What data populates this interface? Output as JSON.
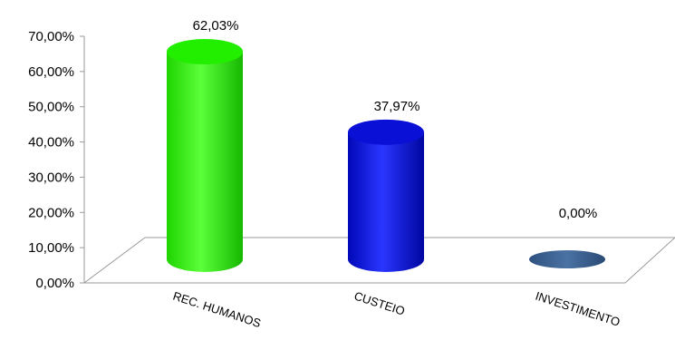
{
  "chart_data": {
    "type": "bar",
    "categories": [
      "REC. HUMANOS",
      "CUSTEIO",
      "INVESTIMENTO"
    ],
    "values": [
      62.03,
      37.97,
      0.0
    ],
    "data_labels": [
      "62,03%",
      "37,97%",
      "0,00%"
    ],
    "y_tick_labels": [
      "0,00%",
      "10,00%",
      "20,00%",
      "30,00%",
      "40,00%",
      "50,00%",
      "60,00%",
      "70,00%"
    ],
    "ylim": [
      0,
      70
    ],
    "title": "",
    "xlabel": "",
    "ylabel": "",
    "grid": false,
    "legend": "none",
    "style": "3d-cylinder",
    "colors": [
      "#22ee00",
      "#0a10d6",
      "#3a5f8c"
    ]
  }
}
